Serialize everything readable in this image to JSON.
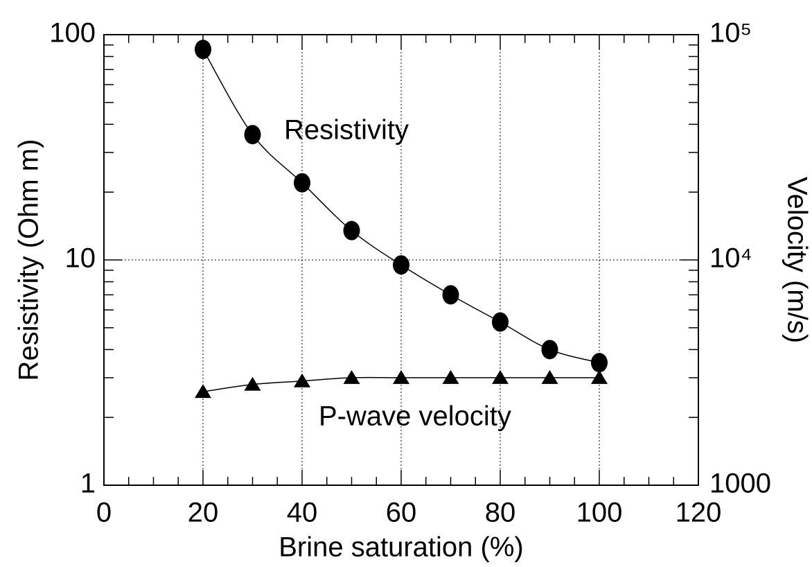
{
  "chart_data": {
    "type": "line",
    "x_label": "Brine saturation (%)",
    "y_label": "Resistivity (Ohm m)",
    "y2_label": "Velocity (m/s)",
    "annotations": [
      "Resistivity",
      "P-wave velocity"
    ],
    "x": [
      20,
      30,
      40,
      50,
      60,
      70,
      80,
      90,
      100
    ],
    "series": [
      {
        "name": "Resistivity",
        "color": "#000000",
        "marker": "circle",
        "values": [
          86,
          36,
          22,
          13.5,
          9.5,
          7.0,
          5.3,
          4.0,
          3.5
        ]
      },
      {
        "name": "P-wave velocity",
        "color": "#000000",
        "marker": "triangle",
        "axis": "y2",
        "values": [
          2600,
          2800,
          2900,
          3000,
          3000,
          3000,
          3000,
          3000,
          3000
        ]
      }
    ],
    "xlim": [
      0,
      120
    ],
    "xticks": [
      0,
      20,
      40,
      60,
      80,
      100,
      120
    ],
    "ylim": [
      1,
      100
    ],
    "yticks": [
      1,
      10,
      100
    ],
    "ylog": true,
    "y2lim": [
      1000,
      100000
    ],
    "y2ticks": [
      1000,
      {
        "value": 10000,
        "label": "10⁴"
      },
      {
        "value": 100000,
        "label": "10⁵"
      }
    ],
    "y2log": true,
    "grid": true
  }
}
